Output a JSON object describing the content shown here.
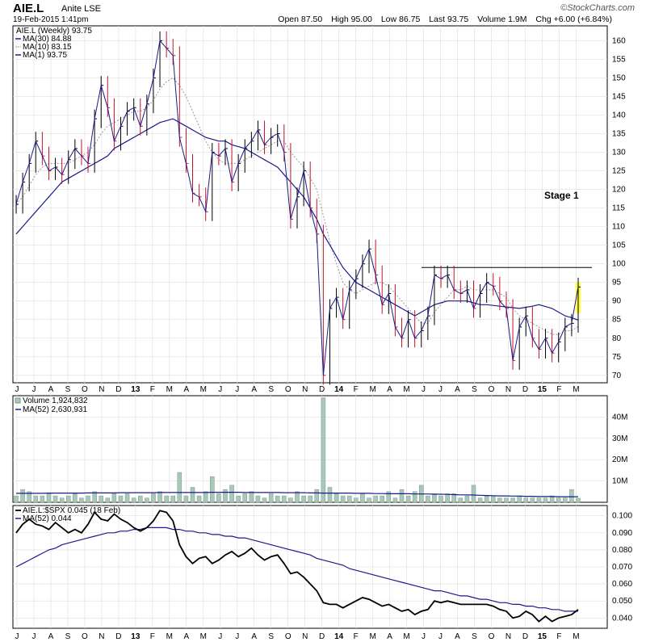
{
  "header": {
    "symbol": "AIE.L",
    "name": "Anite LSE",
    "date": "19-Feb-2015 1:41pm",
    "open_label": "Open",
    "open": "87.50",
    "high_label": "High",
    "high": "95.00",
    "low_label": "Low",
    "low": "86.75",
    "last_label": "Last",
    "last": "93.75",
    "volume_label": "Volume",
    "volume": "1.9M",
    "chg_label": "Chg",
    "chg": "+6.00 (+6.84%)",
    "brand": "©StockCharts.com"
  },
  "colors": {
    "price_up": "#000000",
    "price_down": "#c0142c",
    "ma_long": "#1a1a8c",
    "ma_short": "#999999",
    "volume_bar": "#a8c8b8",
    "highlight": "#ffff33",
    "grid": "#dddddd"
  },
  "chart_data": [
    {
      "type": "line",
      "panel": "price",
      "legend": [
        "AIE.L (Weekly) 93.75",
        "MA(30) 84.88",
        "MA(10) 83.15",
        "MA(1) 93.75"
      ],
      "legend_position": "top-left",
      "ylim": [
        68,
        164
      ],
      "yticks": [
        70,
        75,
        80,
        85,
        90,
        95,
        100,
        105,
        110,
        115,
        120,
        125,
        130,
        135,
        140,
        145,
        150,
        155,
        160
      ],
      "x_labels": [
        "J",
        "J",
        "A",
        "S",
        "O",
        "N",
        "D",
        "13",
        "F",
        "M",
        "A",
        "M",
        "J",
        "J",
        "A",
        "S",
        "O",
        "N",
        "D",
        "14",
        "F",
        "M",
        "A",
        "M",
        "J",
        "J",
        "A",
        "S",
        "O",
        "N",
        "D",
        "15",
        "F",
        "M"
      ],
      "annotation": "Stage 1",
      "resistance_level": 99,
      "series": [
        {
          "name": "AIE.L",
          "values": [
            116,
            122,
            127,
            133,
            129,
            125,
            126,
            124,
            128,
            131,
            129,
            127,
            139,
            148,
            142,
            133,
            137,
            141,
            142,
            137,
            143,
            150,
            160,
            158,
            156,
            134,
            127,
            119,
            118,
            114,
            130,
            129,
            131,
            122,
            127,
            131,
            133,
            136,
            132,
            134,
            135,
            130,
            112,
            118,
            125,
            115,
            108,
            70,
            88,
            91,
            85,
            93,
            96,
            100,
            104,
            97,
            89,
            92,
            83,
            80,
            85,
            80,
            82,
            86,
            97,
            96,
            97,
            93,
            92,
            93,
            88,
            92,
            95,
            94,
            90,
            88,
            74,
            83,
            86,
            80,
            77,
            80,
            76,
            79,
            83,
            84,
            93.75
          ]
        },
        {
          "name": "MA(30)",
          "values": [
            108,
            110,
            112,
            114,
            116,
            118,
            120,
            122,
            123,
            124,
            125,
            126,
            127,
            128,
            129,
            131,
            132,
            133,
            134,
            135,
            136,
            137,
            138,
            138.5,
            139,
            138,
            137,
            136,
            135,
            134,
            133.5,
            133,
            133,
            132,
            131.5,
            131,
            130,
            129,
            128,
            127,
            126,
            124,
            122,
            120,
            118,
            115,
            112,
            108,
            105,
            102,
            99,
            97,
            95,
            94,
            93,
            92,
            91,
            90,
            89,
            88,
            87,
            86,
            87,
            88,
            89,
            89.5,
            90,
            90,
            90,
            90,
            89.5,
            89,
            89,
            88.8,
            88.6,
            88.4,
            88.2,
            88,
            88.3,
            88.6,
            89,
            88.5,
            88,
            87,
            86,
            85.5,
            84.88
          ]
        },
        {
          "name": "MA(10)",
          "values": [
            116,
            118,
            121,
            124,
            126,
            127,
            127,
            127,
            127,
            128,
            129,
            130,
            132,
            135,
            137,
            138,
            139,
            140,
            141,
            141,
            142,
            144,
            147,
            149,
            150,
            148,
            145,
            141,
            137,
            133,
            130,
            128,
            127,
            127,
            127,
            128,
            129,
            130,
            131,
            132,
            133,
            133,
            130,
            128,
            126,
            123,
            120,
            113,
            106,
            100,
            95,
            93,
            92,
            93,
            94,
            95,
            95,
            94,
            92,
            90,
            88,
            86,
            84,
            84,
            87,
            89,
            91,
            93,
            93,
            94,
            93,
            93,
            93,
            93,
            92,
            91,
            88,
            86,
            85,
            84,
            83,
            82,
            81,
            81,
            82,
            82,
            83.15
          ]
        }
      ]
    },
    {
      "type": "bar",
      "panel": "volume",
      "legend": [
        "Volume 1,924,832",
        "MA(52) 2,630,931"
      ],
      "legend_position": "top-left",
      "ylim": [
        0,
        50
      ],
      "yticks": [
        "10M",
        "20M",
        "30M",
        "40M"
      ],
      "yticks_values": [
        10,
        20,
        30,
        40
      ],
      "series": [
        {
          "name": "Volume",
          "values": [
            3,
            6,
            5,
            3,
            3,
            4,
            3,
            2,
            3,
            4,
            2,
            3,
            5,
            3,
            2,
            4,
            3,
            4,
            2,
            3,
            2,
            4,
            5,
            3,
            3,
            14,
            3,
            7,
            3,
            5,
            12,
            4,
            6,
            8,
            3,
            4,
            5,
            3,
            2,
            4,
            3,
            3,
            2,
            5,
            3,
            3,
            6,
            49,
            7,
            4,
            3,
            3,
            2,
            4,
            2,
            3,
            3,
            5,
            2,
            6,
            3,
            5,
            8,
            3,
            4,
            3,
            4,
            4,
            2,
            3,
            8,
            2,
            3,
            3,
            2,
            2,
            2,
            3,
            2,
            2,
            2,
            2,
            3,
            2,
            2,
            6,
            1.9
          ]
        },
        {
          "name": "MA(52)",
          "values": [
            4.2,
            4.2,
            4.2,
            4.2,
            4.2,
            4.3,
            4.3,
            4.3,
            4.3,
            4.3,
            4.3,
            4.4,
            4.4,
            4.4,
            4.4,
            4.4,
            4.5,
            4.5,
            4.5,
            4.5,
            4.5,
            4.5,
            4.6,
            4.6,
            4.6,
            4.6,
            4.6,
            4.6,
            4.6,
            4.6,
            4.7,
            4.7,
            4.7,
            4.7,
            4.7,
            4.6,
            4.6,
            4.6,
            4.6,
            4.6,
            4.6,
            4.5,
            4.5,
            4.5,
            4.5,
            4.4,
            4.4,
            4.3,
            4.3,
            4.3,
            4.3,
            4.3,
            4.2,
            4.2,
            4.2,
            4.1,
            4.1,
            4.0,
            4.0,
            4.0,
            4.0,
            3.9,
            3.9,
            3.9,
            3.8,
            3.8,
            3.7,
            3.6,
            3.5,
            3.5,
            3.4,
            3.3,
            3.2,
            3.1,
            3.0,
            3.0,
            2.9,
            2.9,
            2.8,
            2.8,
            2.7,
            2.7,
            2.7,
            2.6,
            2.6,
            2.6,
            2.63
          ]
        }
      ]
    },
    {
      "type": "line",
      "panel": "relative-strength",
      "legend": [
        "AIE.L:$SPX 0.045 (18 Feb)",
        "MA(52) 0.044"
      ],
      "legend_position": "top-left",
      "ylim": [
        0.034,
        0.106
      ],
      "yticks": [
        "0.040",
        "0.050",
        "0.060",
        "0.070",
        "0.080",
        "0.090",
        "0.100"
      ],
      "yticks_values": [
        0.04,
        0.05,
        0.06,
        0.07,
        0.08,
        0.09,
        0.1
      ],
      "series": [
        {
          "name": "AIE.L:$SPX",
          "values": [
            0.09,
            0.095,
            0.098,
            0.095,
            0.094,
            0.092,
            0.096,
            0.093,
            0.09,
            0.092,
            0.09,
            0.095,
            0.102,
            0.098,
            0.097,
            0.101,
            0.098,
            0.096,
            0.093,
            0.091,
            0.093,
            0.097,
            0.103,
            0.102,
            0.097,
            0.083,
            0.076,
            0.072,
            0.075,
            0.076,
            0.072,
            0.074,
            0.077,
            0.079,
            0.076,
            0.078,
            0.081,
            0.077,
            0.074,
            0.076,
            0.077,
            0.072,
            0.066,
            0.067,
            0.064,
            0.06,
            0.056,
            0.049,
            0.048,
            0.048,
            0.046,
            0.048,
            0.05,
            0.052,
            0.051,
            0.049,
            0.047,
            0.048,
            0.046,
            0.044,
            0.045,
            0.042,
            0.044,
            0.045,
            0.05,
            0.049,
            0.05,
            0.049,
            0.048,
            0.048,
            0.048,
            0.048,
            0.048,
            0.047,
            0.045,
            0.044,
            0.04,
            0.041,
            0.044,
            0.042,
            0.038,
            0.041,
            0.038,
            0.04,
            0.041,
            0.042,
            0.045
          ]
        },
        {
          "name": "MA(52)",
          "values": [
            0.07,
            0.072,
            0.074,
            0.076,
            0.078,
            0.08,
            0.081,
            0.083,
            0.084,
            0.085,
            0.086,
            0.087,
            0.088,
            0.089,
            0.09,
            0.09,
            0.091,
            0.091,
            0.092,
            0.092,
            0.093,
            0.093,
            0.093,
            0.093,
            0.092,
            0.092,
            0.091,
            0.091,
            0.09,
            0.09,
            0.089,
            0.089,
            0.088,
            0.088,
            0.087,
            0.087,
            0.086,
            0.085,
            0.084,
            0.083,
            0.082,
            0.081,
            0.08,
            0.079,
            0.078,
            0.077,
            0.075,
            0.074,
            0.073,
            0.072,
            0.071,
            0.069,
            0.068,
            0.067,
            0.066,
            0.065,
            0.064,
            0.063,
            0.062,
            0.061,
            0.06,
            0.059,
            0.058,
            0.057,
            0.056,
            0.056,
            0.055,
            0.054,
            0.053,
            0.053,
            0.052,
            0.051,
            0.051,
            0.05,
            0.049,
            0.049,
            0.048,
            0.048,
            0.047,
            0.047,
            0.046,
            0.046,
            0.045,
            0.045,
            0.044,
            0.044,
            0.044
          ]
        }
      ]
    }
  ]
}
